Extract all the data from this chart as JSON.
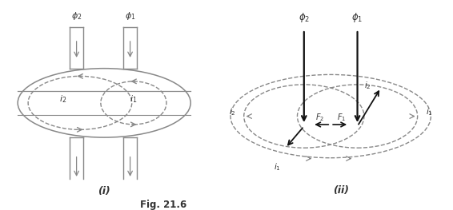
{
  "fig_label": "Fig. 21.6",
  "sub_i_label": "(i)",
  "sub_ii_label": "(ii)",
  "bg_color": "#ffffff",
  "lc": "#888888",
  "dc": "#333333",
  "blk": "#111111"
}
